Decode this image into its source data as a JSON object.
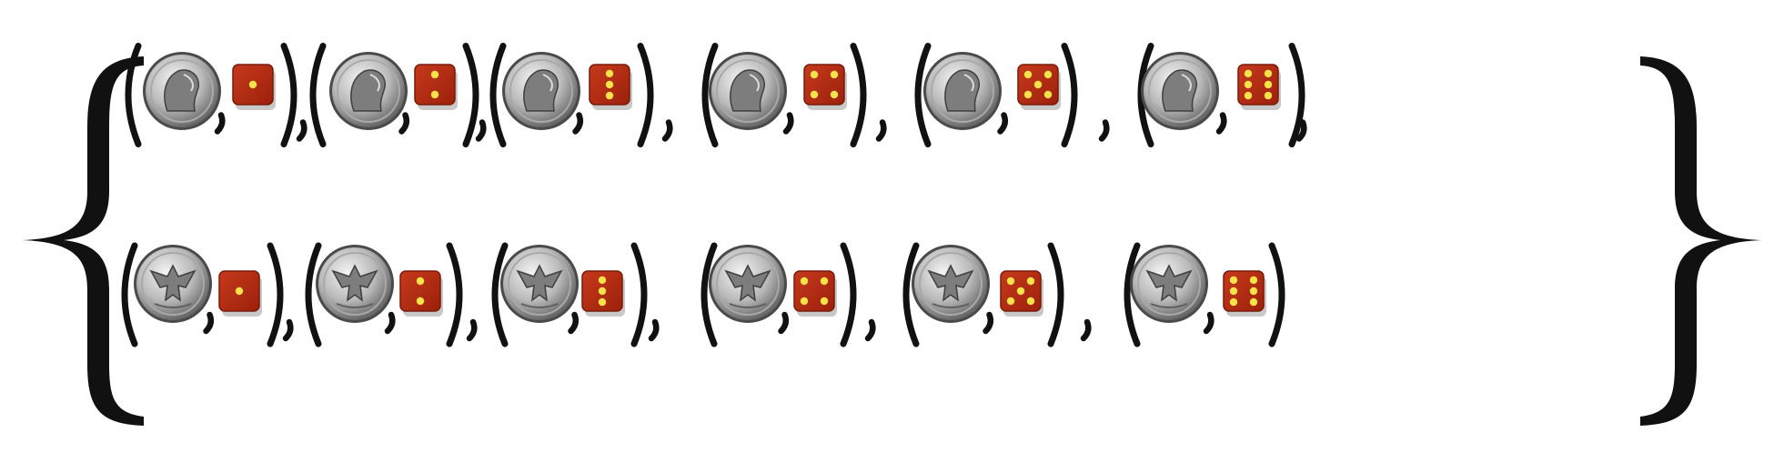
{
  "set": {
    "description_hidden": "",
    "rows": [
      {
        "coin_side": "heads",
        "outcomes": [
          {
            "coin": "heads",
            "die": 1
          },
          {
            "coin": "heads",
            "die": 2
          },
          {
            "coin": "heads",
            "die": 3
          },
          {
            "coin": "heads",
            "die": 4
          },
          {
            "coin": "heads",
            "die": 5
          },
          {
            "coin": "heads",
            "die": 6
          }
        ]
      },
      {
        "coin_side": "tails",
        "outcomes": [
          {
            "coin": "tails",
            "die": 1
          },
          {
            "coin": "tails",
            "die": 2
          },
          {
            "coin": "tails",
            "die": 3
          },
          {
            "coin": "tails",
            "die": 4
          },
          {
            "coin": "tails",
            "die": 5
          },
          {
            "coin": "tails",
            "die": 6
          }
        ]
      }
    ]
  },
  "colors": {
    "ink": "#111111",
    "die_face": "#b52a10",
    "die_edge": "#7a1a08",
    "die_shadow": "#c8c8c8",
    "pip": "#f7e24a",
    "coin_light": "#e6e6e6",
    "coin_mid": "#a9a9a9",
    "coin_dark": "#4a4a4a"
  },
  "icons": {
    "heads": "quarter-heads-icon",
    "tails": "quarter-tails-icon",
    "die": "die-icon"
  }
}
